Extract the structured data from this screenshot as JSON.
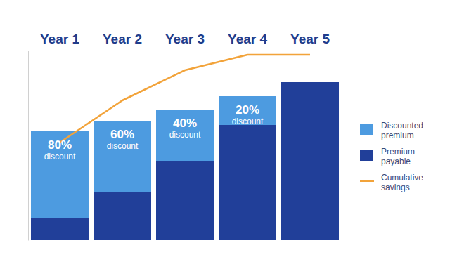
{
  "chart_data": {
    "type": "bar",
    "stacked": true,
    "categories": [
      "Year 1",
      "Year 2",
      "Year 3",
      "Year 4",
      "Year 5"
    ],
    "series": [
      {
        "name": "Discounted premium",
        "color": "#4d9be0",
        "values": [
          124,
          102,
          74,
          41,
          0
        ]
      },
      {
        "name": "Premium payable",
        "color": "#213f99",
        "values": [
          31,
          68,
          112,
          164,
          225
        ]
      },
      {
        "name": "Cumulative savings",
        "type": "line",
        "color": "#f2a33a",
        "values": [
          139,
          199,
          242,
          264,
          264
        ]
      }
    ],
    "ylim": [
      0,
      270
    ],
    "yticks": [],
    "tick_labels": "x",
    "legend": "right",
    "discount_labels": [
      "80%",
      "60%",
      "40%",
      "20%",
      null
    ],
    "discount_caption": "discount"
  }
}
